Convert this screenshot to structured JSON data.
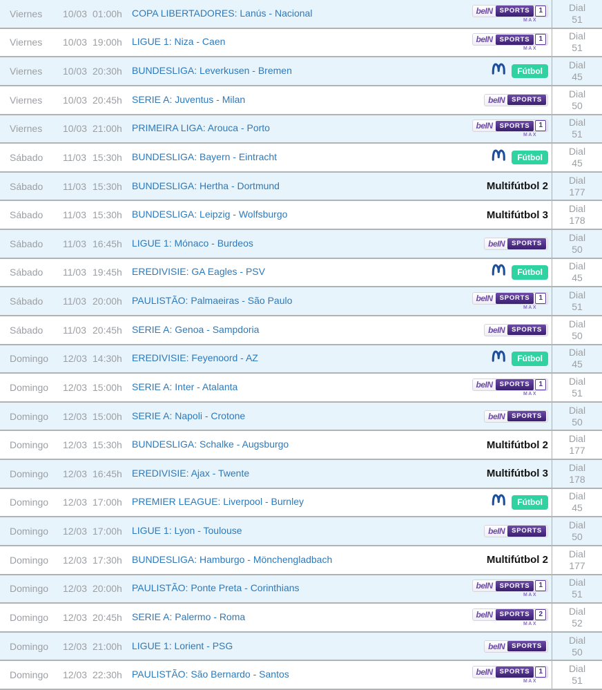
{
  "palette": {
    "alt_row": "#e8f4fb",
    "row_border": "#aeb3b6",
    "muted": "#9b9fa3",
    "link": "#2d79ba",
    "bein_purple_dark": "#3a1f70",
    "bein_purple": "#5b3a9b",
    "bein_brand": "#6f4ba8",
    "movistar_blue": "#1e4f9c",
    "futbol_green": "#2fd3a2",
    "multi_black": "#141414"
  },
  "labels": {
    "dial": "Dial"
  },
  "channels": {
    "bein_sports": {
      "kind": "bein",
      "brand": "beIN",
      "box": "SPORTS"
    },
    "bein_max_1": {
      "kind": "bein",
      "brand": "beIN",
      "box": "SPORTS",
      "num": "1",
      "sub": "MAX"
    },
    "bein_max_2": {
      "kind": "bein",
      "brand": "beIN",
      "box": "SPORTS",
      "num": "2",
      "sub": "MAX"
    },
    "m_futbol": {
      "kind": "mfutbol",
      "icon": "movistar-m-icon",
      "badge": "Fútbol"
    },
    "multifutbol_2": {
      "kind": "text",
      "label": "Multifútbol 2"
    },
    "multifutbol_3": {
      "kind": "text",
      "label": "Multifútbol 3"
    }
  },
  "rows": [
    {
      "day": "Viernes",
      "date": "10/03",
      "time": "01:00h",
      "match": "COPA LIBERTADORES: Lanús - Nacional",
      "channel": "bein_max_1",
      "dial": "51"
    },
    {
      "day": "Viernes",
      "date": "10/03",
      "time": "19:00h",
      "match": "LIGUE 1: Niza - Caen",
      "channel": "bein_max_1",
      "dial": "51"
    },
    {
      "day": "Viernes",
      "date": "10/03",
      "time": "20:30h",
      "match": "BUNDESLIGA: Leverkusen - Bremen",
      "channel": "m_futbol",
      "dial": "45"
    },
    {
      "day": "Viernes",
      "date": "10/03",
      "time": "20:45h",
      "match": "SERIE A: Juventus - Milan",
      "channel": "bein_sports",
      "dial": "50"
    },
    {
      "day": "Viernes",
      "date": "10/03",
      "time": "21:00h",
      "match": "PRIMEIRA LIGA: Arouca - Porto",
      "channel": "bein_max_1",
      "dial": "51"
    },
    {
      "day": "Sábado",
      "date": "11/03",
      "time": "15:30h",
      "match": "BUNDESLIGA: Bayern - Eintracht",
      "channel": "m_futbol",
      "dial": "45"
    },
    {
      "day": "Sábado",
      "date": "11/03",
      "time": "15:30h",
      "match": "BUNDESLIGA: Hertha - Dortmund",
      "channel": "multifutbol_2",
      "dial": "177"
    },
    {
      "day": "Sábado",
      "date": "11/03",
      "time": "15:30h",
      "match": "BUNDESLIGA: Leipzig - Wolfsburgo",
      "channel": "multifutbol_3",
      "dial": "178"
    },
    {
      "day": "Sábado",
      "date": "11/03",
      "time": "16:45h",
      "match": "LIGUE 1: Mónaco - Burdeos",
      "channel": "bein_sports",
      "dial": "50"
    },
    {
      "day": "Sábado",
      "date": "11/03",
      "time": "19:45h",
      "match": "EREDIVISIE: GA Eagles - PSV",
      "channel": "m_futbol",
      "dial": "45"
    },
    {
      "day": "Sábado",
      "date": "11/03",
      "time": "20:00h",
      "match": "PAULISTÃO: Palmaeiras - São Paulo",
      "channel": "bein_max_1",
      "dial": "51"
    },
    {
      "day": "Sábado",
      "date": "11/03",
      "time": "20:45h",
      "match": "SERIE A: Genoa - Sampdoria",
      "channel": "bein_sports",
      "dial": "50"
    },
    {
      "day": "Domingo",
      "date": "12/03",
      "time": "14:30h",
      "match": "EREDIVISIE: Feyenoord - AZ",
      "channel": "m_futbol",
      "dial": "45"
    },
    {
      "day": "Domingo",
      "date": "12/03",
      "time": "15:00h",
      "match": "SERIE A: Inter - Atalanta",
      "channel": "bein_max_1",
      "dial": "51"
    },
    {
      "day": "Domingo",
      "date": "12/03",
      "time": "15:00h",
      "match": "SERIE A: Napoli - Crotone",
      "channel": "bein_sports",
      "dial": "50"
    },
    {
      "day": "Domingo",
      "date": "12/03",
      "time": "15:30h",
      "match": "BUNDESLIGA: Schalke - Augsburgo",
      "channel": "multifutbol_2",
      "dial": "177"
    },
    {
      "day": "Domingo",
      "date": "12/03",
      "time": "16:45h",
      "match": "EREDIVISIE: Ajax - Twente",
      "channel": "multifutbol_3",
      "dial": "178"
    },
    {
      "day": "Domingo",
      "date": "12/03",
      "time": "17:00h",
      "match": "PREMIER LEAGUE: Liverpool - Burnley",
      "channel": "m_futbol",
      "dial": "45"
    },
    {
      "day": "Domingo",
      "date": "12/03",
      "time": "17:00h",
      "match": "LIGUE 1: Lyon - Toulouse",
      "channel": "bein_sports",
      "dial": "50"
    },
    {
      "day": "Domingo",
      "date": "12/03",
      "time": "17:30h",
      "match": "BUNDESLIGA: Hamburgo - Mönchengladbach",
      "channel": "multifutbol_2",
      "dial": "177"
    },
    {
      "day": "Domingo",
      "date": "12/03",
      "time": "20:00h",
      "match": "PAULISTÃO: Ponte Preta - Corinthians",
      "channel": "bein_max_1",
      "dial": "51"
    },
    {
      "day": "Domingo",
      "date": "12/03",
      "time": "20:45h",
      "match": "SERIE A: Palermo - Roma",
      "channel": "bein_max_2",
      "dial": "52"
    },
    {
      "day": "Domingo",
      "date": "12/03",
      "time": "21:00h",
      "match": "LIGUE 1: Lorient - PSG",
      "channel": "bein_sports",
      "dial": "50"
    },
    {
      "day": "Domingo",
      "date": "12/03",
      "time": "22:30h",
      "match": "PAULISTÃO: São Bernardo - Santos",
      "channel": "bein_max_1",
      "dial": "51"
    }
  ]
}
